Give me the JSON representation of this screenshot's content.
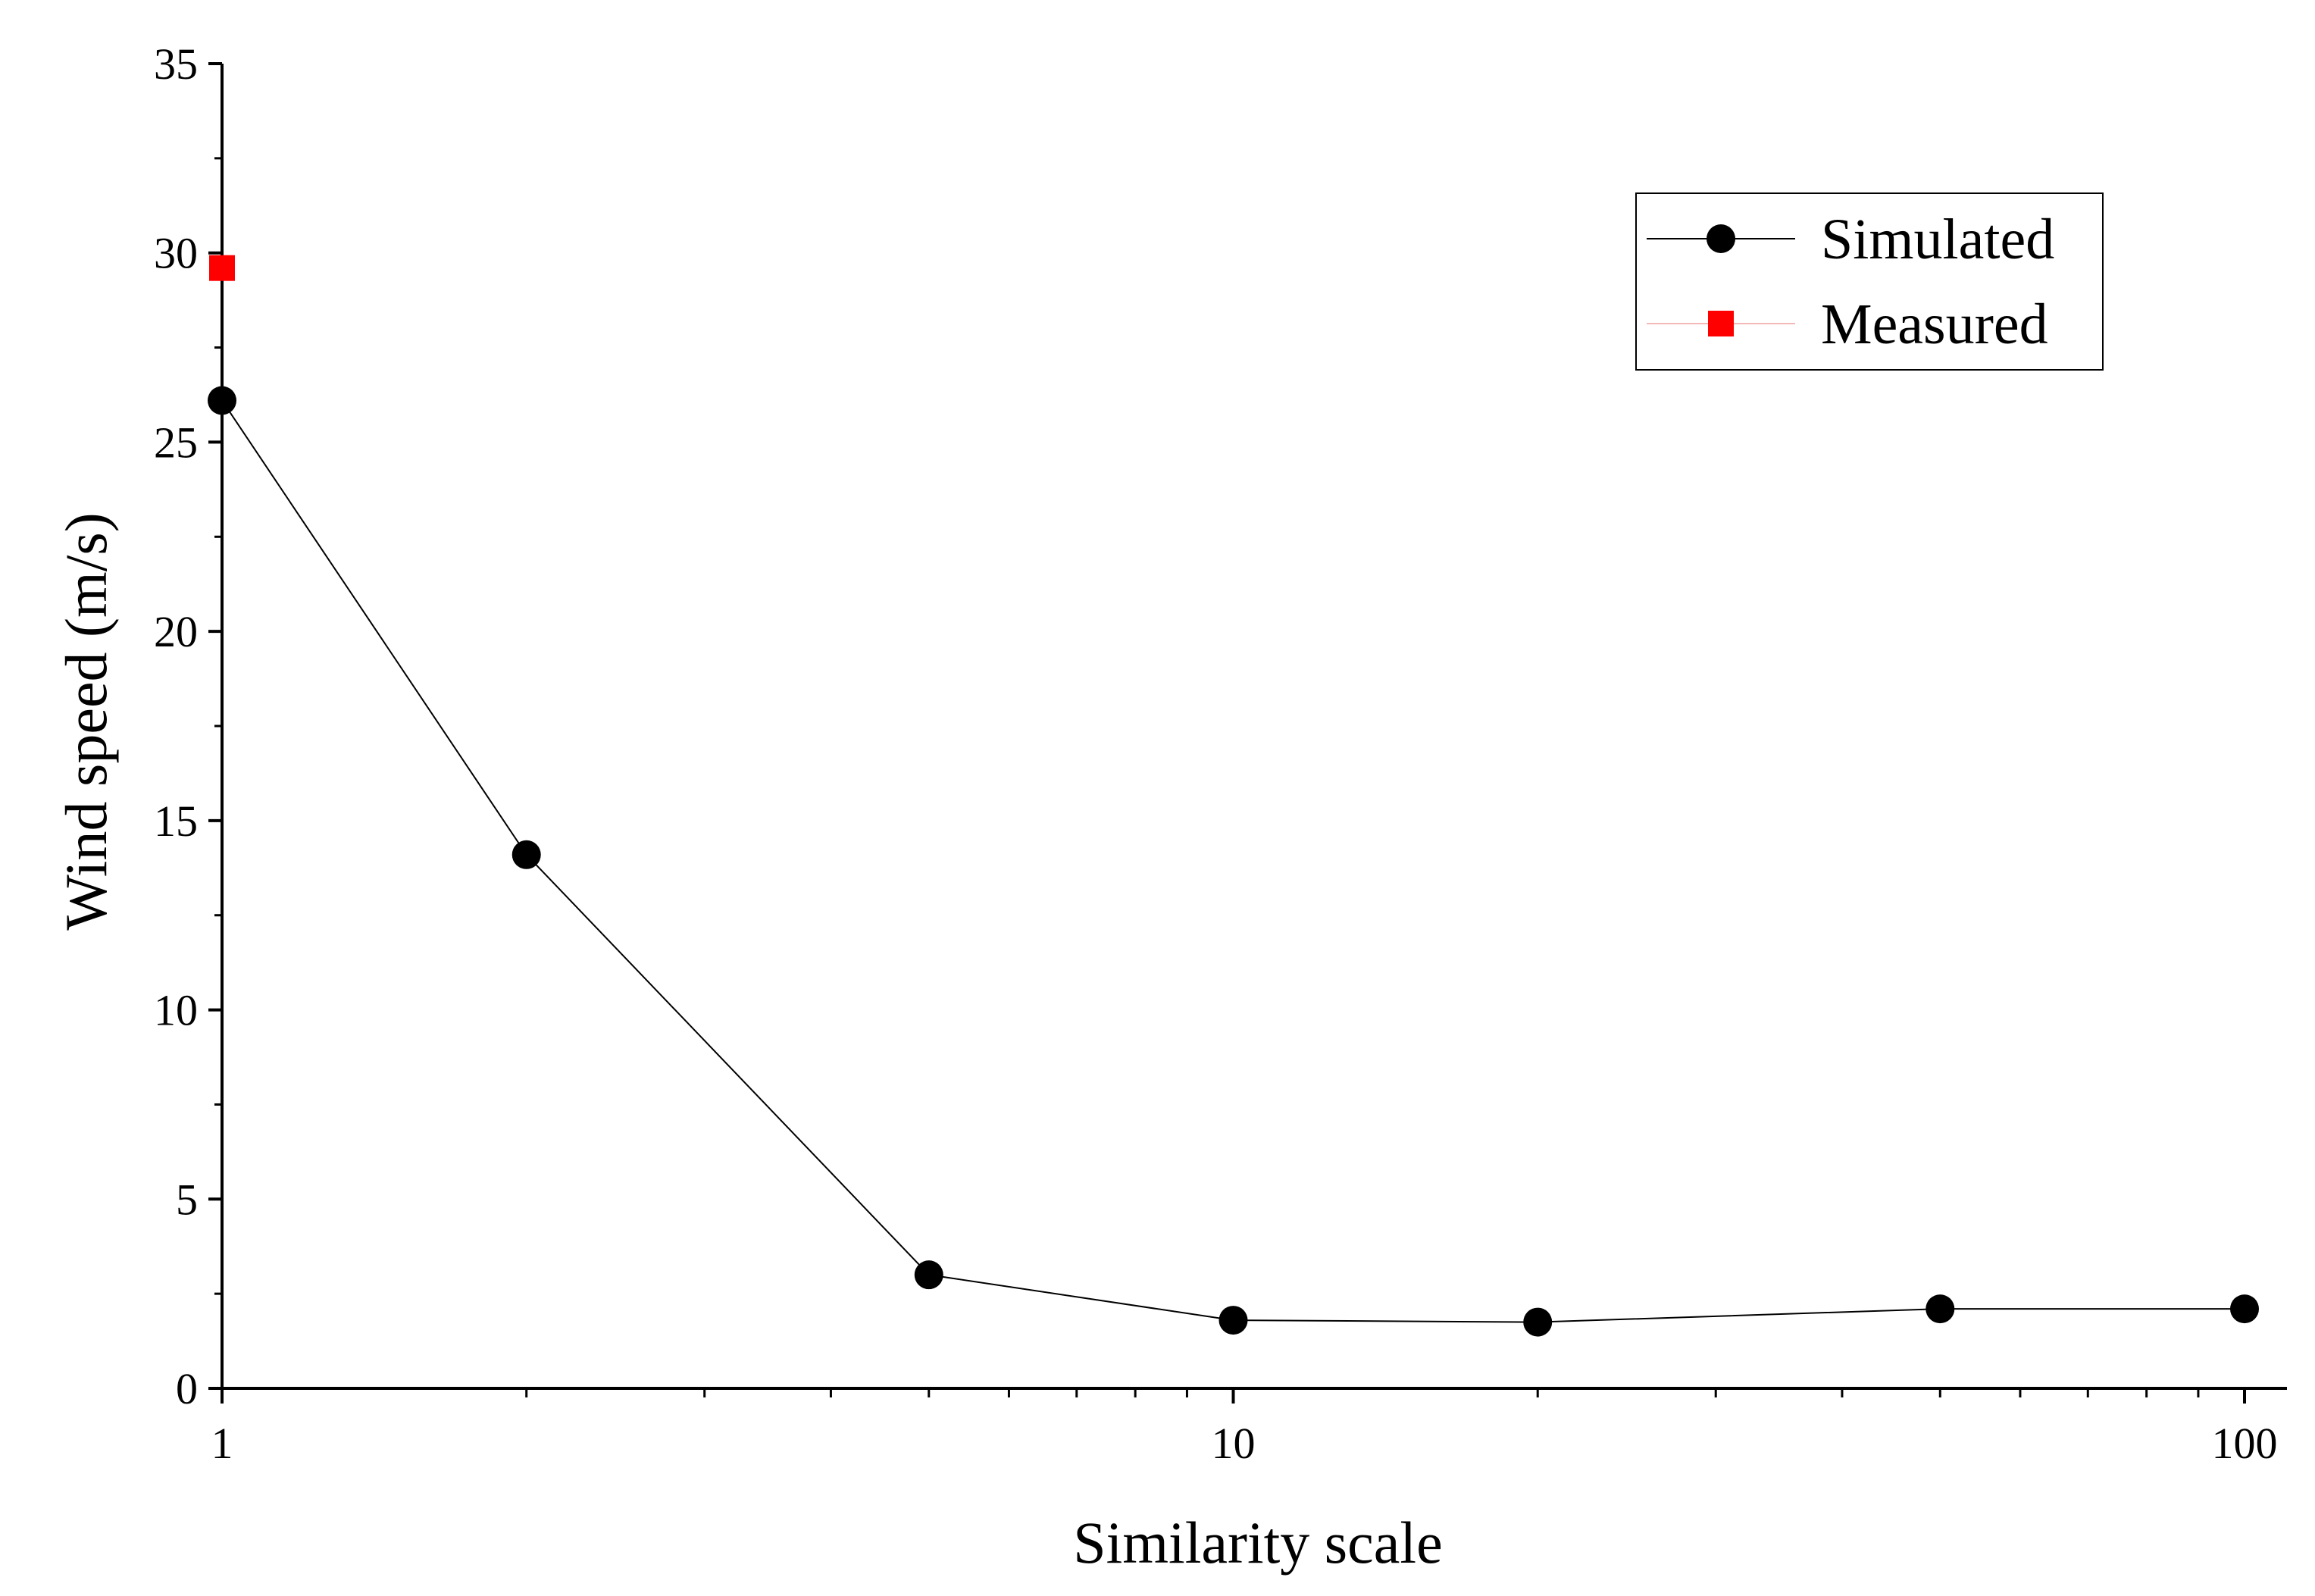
{
  "chart_data": {
    "type": "scatter",
    "title": "",
    "xlabel": "Similarity scale",
    "ylabel": "Wind speed (m/s)",
    "xscale": "log",
    "xlim": [
      1,
      100
    ],
    "ylim": [
      0,
      35
    ],
    "xticks": [
      {
        "value": 1,
        "label": "1"
      },
      {
        "value": 10,
        "label": "10"
      },
      {
        "value": 100,
        "label": "100"
      }
    ],
    "yticks": [
      {
        "value": 0,
        "label": "0"
      },
      {
        "value": 5,
        "label": "5"
      },
      {
        "value": 10,
        "label": "10"
      },
      {
        "value": 15,
        "label": "15"
      },
      {
        "value": 20,
        "label": "20"
      },
      {
        "value": 25,
        "label": "25"
      },
      {
        "value": 30,
        "label": "30"
      },
      {
        "value": 35,
        "label": "35"
      }
    ],
    "grid": false,
    "legend_position": "top-right",
    "series": [
      {
        "name": "Simulated",
        "marker": "circle",
        "color": "#000000",
        "line": true,
        "x": [
          1,
          2,
          5,
          10,
          20,
          50,
          100
        ],
        "y": [
          26.1,
          14.1,
          3.0,
          1.8,
          1.75,
          2.1,
          2.1
        ]
      },
      {
        "name": "Measured",
        "marker": "square",
        "color": "#ff0000",
        "line": false,
        "x": [
          1
        ],
        "y": [
          29.6
        ]
      }
    ]
  }
}
